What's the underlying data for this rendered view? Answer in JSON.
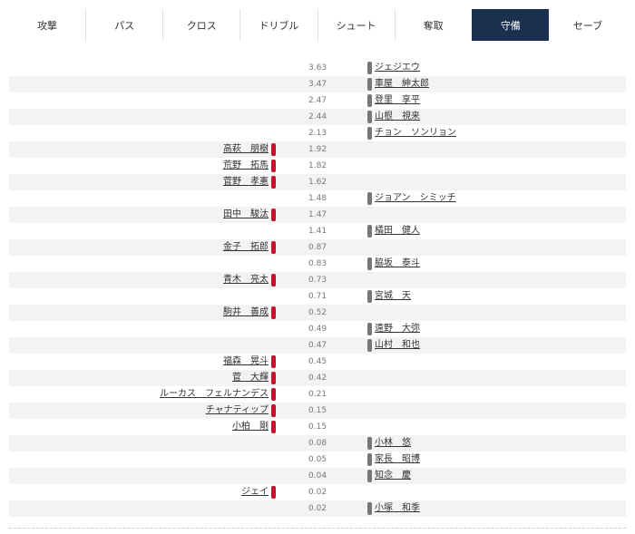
{
  "tabs": [
    {
      "label": "攻撃",
      "active": false
    },
    {
      "label": "パス",
      "active": false
    },
    {
      "label": "クロス",
      "active": false
    },
    {
      "label": "ドリブル",
      "active": false
    },
    {
      "label": "シュート",
      "active": false
    },
    {
      "label": "奪取",
      "active": false
    },
    {
      "label": "守備",
      "active": true
    },
    {
      "label": "セーブ",
      "active": false
    }
  ],
  "colors": {
    "active_tab": "#1b2f4e",
    "left_team": "#c8102e",
    "right_team": "#777777"
  },
  "rows": [
    {
      "value": "3.63",
      "side": "right",
      "name": "ジェジエウ"
    },
    {
      "value": "3.47",
      "side": "right",
      "name": "車屋　紳太郎"
    },
    {
      "value": "2.47",
      "side": "right",
      "name": "登里　享平"
    },
    {
      "value": "2.44",
      "side": "right",
      "name": "山根　視来"
    },
    {
      "value": "2.13",
      "side": "right",
      "name": "チョン　ソンリョン"
    },
    {
      "value": "1.92",
      "side": "left",
      "name": "高萩　朋樹"
    },
    {
      "value": "1.82",
      "side": "left",
      "name": "荒野　拓馬"
    },
    {
      "value": "1.62",
      "side": "left",
      "name": "菅野　孝憲"
    },
    {
      "value": "1.48",
      "side": "right",
      "name": "ジョアン　シミッチ"
    },
    {
      "value": "1.47",
      "side": "left",
      "name": "田中　駿汰"
    },
    {
      "value": "1.41",
      "side": "right",
      "name": "橘田　健人"
    },
    {
      "value": "0.87",
      "side": "left",
      "name": "金子　拓郎"
    },
    {
      "value": "0.83",
      "side": "right",
      "name": "脇坂　泰斗"
    },
    {
      "value": "0.73",
      "side": "left",
      "name": "青木　亮太"
    },
    {
      "value": "0.71",
      "side": "right",
      "name": "宮城　天"
    },
    {
      "value": "0.52",
      "side": "left",
      "name": "駒井　善成"
    },
    {
      "value": "0.49",
      "side": "right",
      "name": "遠野　大弥"
    },
    {
      "value": "0.47",
      "side": "right",
      "name": "山村　和也"
    },
    {
      "value": "0.45",
      "side": "left",
      "name": "福森　晃斗"
    },
    {
      "value": "0.42",
      "side": "left",
      "name": "菅　大輝"
    },
    {
      "value": "0.21",
      "side": "left",
      "name": "ルーカス　フェルナンデス"
    },
    {
      "value": "0.15",
      "side": "left",
      "name": "チャナティップ"
    },
    {
      "value": "0.15",
      "side": "left",
      "name": "小柏　剛"
    },
    {
      "value": "0.08",
      "side": "right",
      "name": "小林　悠"
    },
    {
      "value": "0.05",
      "side": "right",
      "name": "家長　昭博"
    },
    {
      "value": "0.04",
      "side": "right",
      "name": "知念　慶"
    },
    {
      "value": "0.02",
      "side": "left",
      "name": "ジェイ"
    },
    {
      "value": "0.02",
      "side": "right",
      "name": "小塚　和季"
    }
  ]
}
